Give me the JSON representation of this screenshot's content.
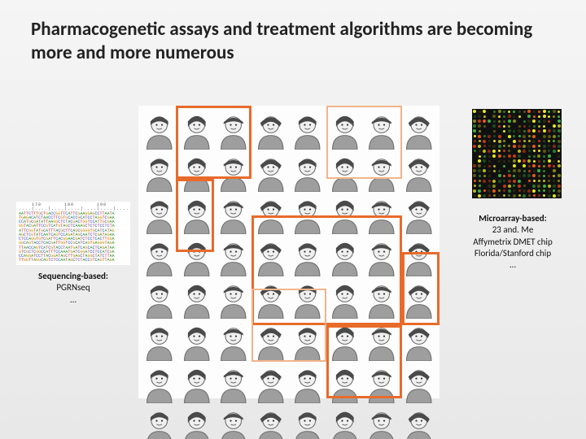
{
  "title": "Pharmacogenetic assays and treatment algorithms are becoming more and more numerous",
  "people_panel": {
    "cols": 8,
    "rows": 8,
    "bg": "#fdfdfd",
    "person_colors": {
      "body": "#9e9e9e",
      "outline": "#6e6e6e",
      "hair": "#4a4a4a",
      "skin": "#f0f0f0"
    },
    "highlight_boxes": [
      {
        "col": 1,
        "row": 0,
        "w": 2,
        "h": 2,
        "color": "#e86b2b",
        "thickness": 3
      },
      {
        "col": 5,
        "row": 0,
        "w": 2,
        "h": 2,
        "color": "#f2b48a",
        "thickness": 2
      },
      {
        "col": 1,
        "row": 2,
        "w": 1,
        "h": 2,
        "color": "#e86b2b",
        "thickness": 3
      },
      {
        "col": 3,
        "row": 3,
        "w": 4,
        "h": 3,
        "color": "#e86b2b",
        "thickness": 3
      },
      {
        "col": 3,
        "row": 5,
        "w": 2,
        "h": 2,
        "color": "#f2b48a",
        "thickness": 2
      },
      {
        "col": 5,
        "row": 6,
        "w": 2,
        "h": 2,
        "color": "#e86b2b",
        "thickness": 3
      },
      {
        "col": 7,
        "row": 4,
        "w": 1,
        "h": 2,
        "color": "#e86b2b",
        "thickness": 3
      }
    ]
  },
  "microarray": {
    "grid": 18,
    "bg": "#111111",
    "palette": [
      "#0e0e0e",
      "#2a2a0e",
      "#5a5a10",
      "#8a8a14",
      "#b8b81a",
      "#e6e620",
      "#1e4a1e",
      "#2e7a2e",
      "#3faf3f",
      "#8a2a10",
      "#c23a14",
      "#e65a18"
    ],
    "caption_header": "Microarray-based:",
    "caption_lines": [
      "23 and. Me",
      "Affymetrix DMET chip",
      "Florida/Stanford chip",
      "…"
    ]
  },
  "sequencing": {
    "ruler_labels": [
      "170",
      "180",
      "190"
    ],
    "lines": [
      "AATTCTTTGCTGACCGGTTCATTCGAAGGAGCCTTAATA",
      "TGAGACATCTAACCTTCGTGCACCGCATCCTAGGTCGAA",
      "CCATGCGATATTAAGGCTCTACGACTGGTCCATTGCGAA",
      "GGTACGATTCCGTCATGTAGCTCAAAGCTCTCTCCTCTA",
      "ATTCGGTATGCATTTACGCTTCAGCGGGGTGCATCATAG",
      "AGCTCGTATCAATCAGTCCAGATAGCAATCTCGATAGAA",
      "CTCCAGGTGTCGATTCACGGAACGATCTCCTCACTTGGA",
      "GGCAGTACCTCACGATTGGTCCGCATCAGTGAGGGTAGA",
      "TTAACCAGTCATCGTACCTAATGATCAGCACTCAGATAA",
      "GTCGCTCGGCCATTTCCAAATGATCGGATCCTCCATCGA",
      "CCAGGATCCTTACGGATAGCTTGAGCTAGGCTATCTTAA",
      "TTGGTTAGGCAGTCTCCAATAGCTCTACCGTCAGTTAGA"
    ],
    "caption_header": "Sequencing-based:",
    "caption_lines": [
      "PGRNseq",
      "…"
    ]
  }
}
